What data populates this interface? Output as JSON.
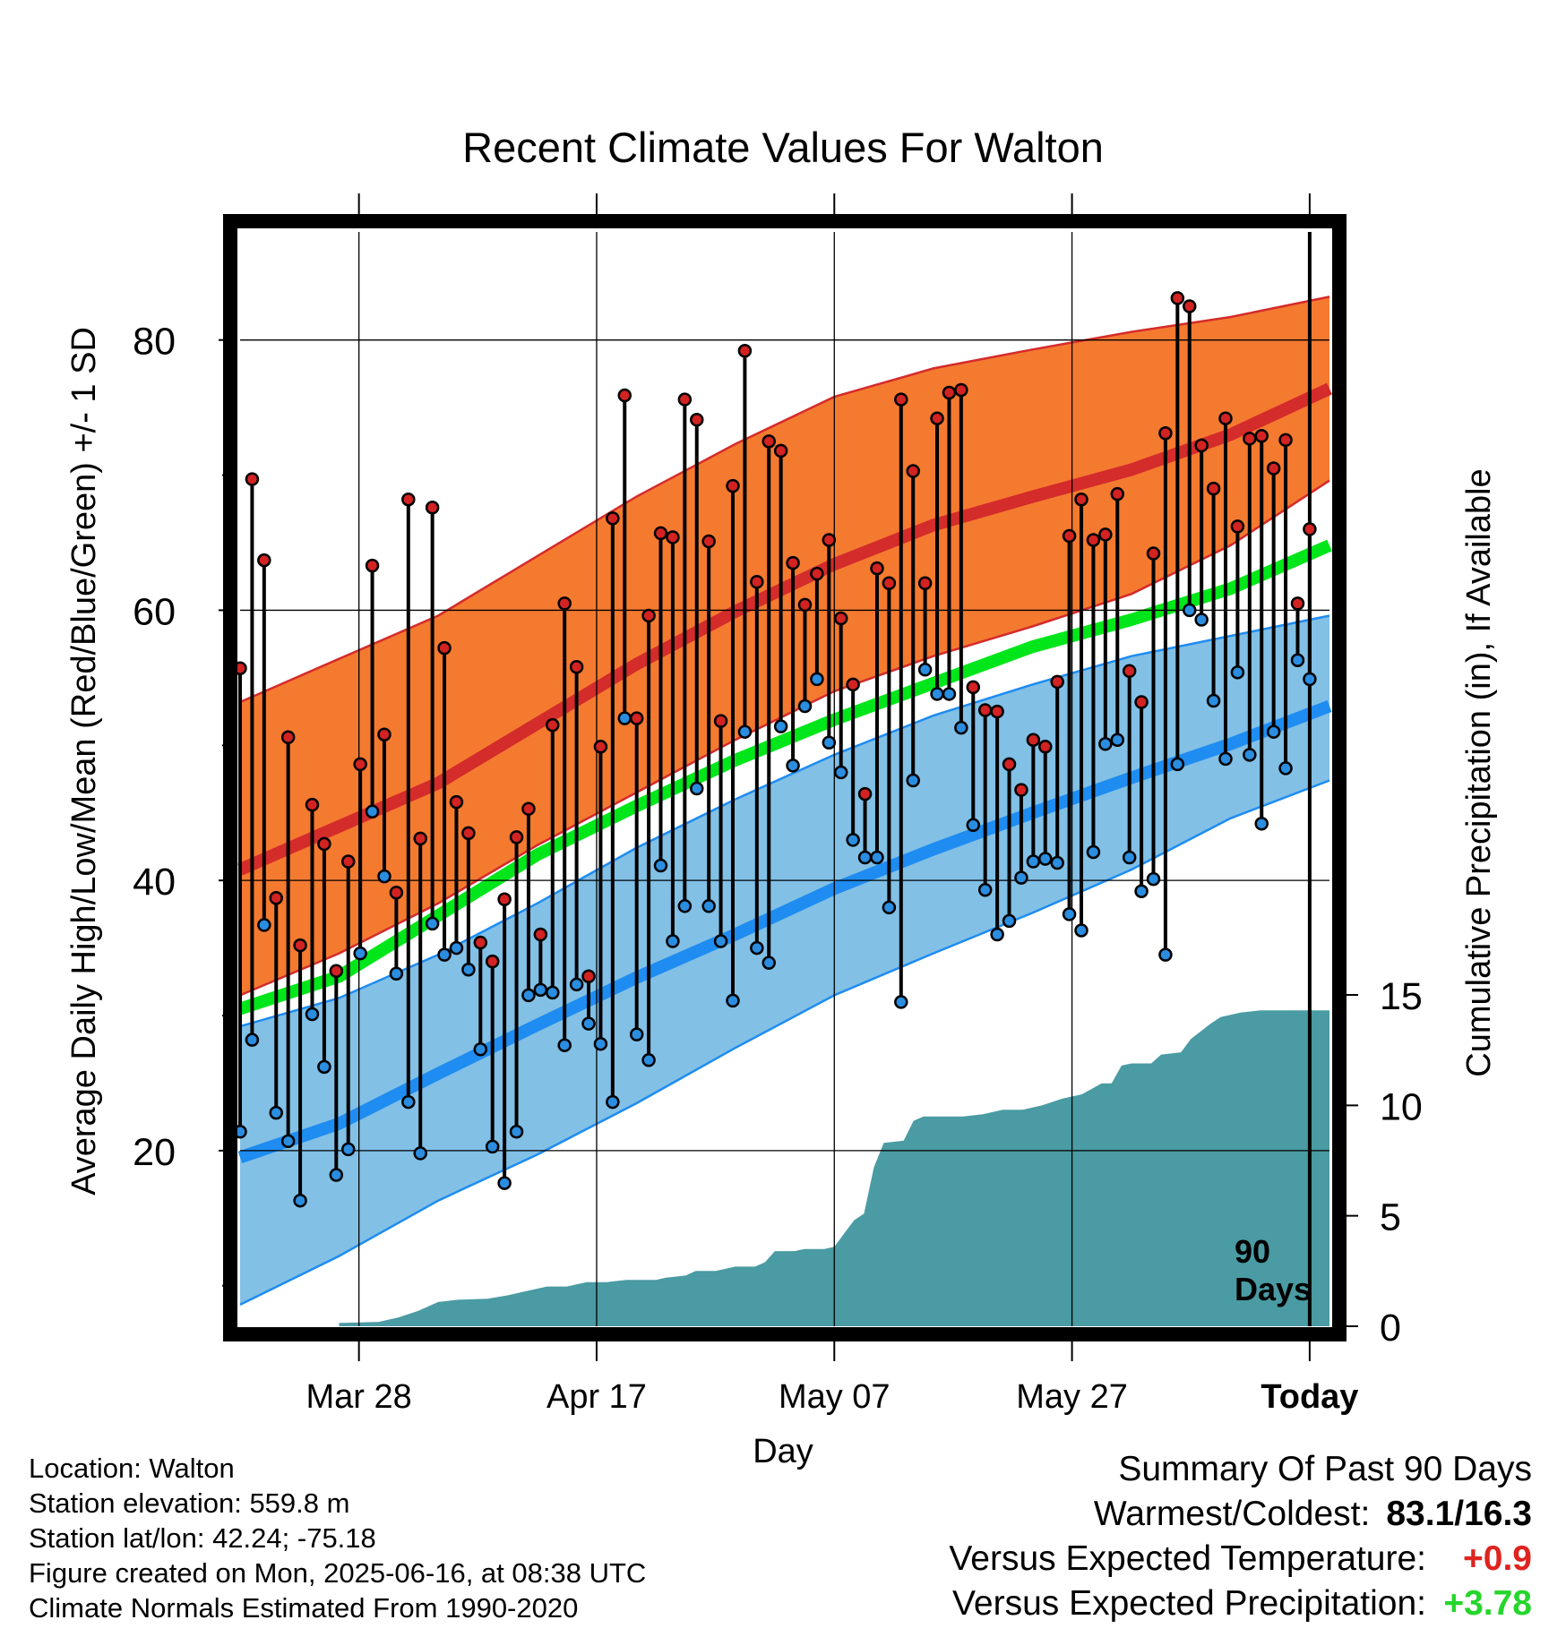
{
  "chart_data": {
    "type": "line",
    "title": "Recent Climate Values For Walton",
    "xlabel": "Day",
    "ylabel": "Average Daily High/Low/Mean (Red/Blue/Green) +/- 1 SD",
    "y2label": "Cumulative Precipitation (in), If Available",
    "ylim": [
      7,
      88
    ],
    "y2lim": [
      0,
      15
    ],
    "y_ticks": [
      "20",
      "40",
      "60",
      "80"
    ],
    "y2_ticks": [
      "0",
      "5",
      "10",
      "15"
    ],
    "x_ticks": [
      "Mar 28",
      "Apr 17",
      "May 07",
      "May 27",
      "Today"
    ],
    "today_marker_label": "90 Days",
    "grid": true,
    "daily_high": [
      55.7,
      69.7,
      63.7,
      38.7,
      50.6,
      35.2,
      45.6,
      42.7,
      33.3,
      41.4,
      48.6,
      63.3,
      50.8,
      39.1,
      68.2,
      43.1,
      67.6,
      57.2,
      45.8,
      43.5,
      35.4,
      34.0,
      38.6,
      43.2,
      45.3,
      36.0,
      51.5,
      60.5,
      55.8,
      32.9,
      49.9,
      66.8,
      75.9,
      52.0,
      59.6,
      65.7,
      65.4,
      75.6,
      74.1,
      65.1,
      51.8,
      69.2,
      79.2,
      62.1,
      72.5,
      71.8,
      63.5,
      60.4,
      62.7,
      65.2,
      59.4,
      54.5,
      46.4,
      63.1,
      62.0,
      75.6,
      70.3,
      62.0,
      74.2,
      76.1,
      76.3,
      54.3,
      52.6,
      52.5,
      48.6,
      46.7,
      50.4,
      49.9,
      54.7,
      65.5,
      68.2,
      65.2,
      65.6,
      68.6,
      55.5,
      53.2,
      64.2,
      73.1,
      83.1,
      82.5,
      72.2,
      69.0,
      74.2,
      66.2,
      72.7,
      72.9,
      70.5,
      72.6,
      60.5,
      66.0
    ],
    "daily_low": [
      21.4,
      28.2,
      36.7,
      22.8,
      20.7,
      16.3,
      30.1,
      26.2,
      18.2,
      20.1,
      34.6,
      45.1,
      40.3,
      33.1,
      23.6,
      19.8,
      36.8,
      34.5,
      35.0,
      33.4,
      27.5,
      20.3,
      17.6,
      21.4,
      31.5,
      31.9,
      31.7,
      27.8,
      32.3,
      29.4,
      27.9,
      23.6,
      52.0,
      28.6,
      26.7,
      41.1,
      35.5,
      38.1,
      46.8,
      38.1,
      35.5,
      31.1,
      51.0,
      35.0,
      33.9,
      51.4,
      48.5,
      52.9,
      54.9,
      50.2,
      48.0,
      43.0,
      41.7,
      41.7,
      38.0,
      31.0,
      47.4,
      55.6,
      53.8,
      53.8,
      51.3,
      44.1,
      39.3,
      36.0,
      37.0,
      40.2,
      41.4,
      41.6,
      41.3,
      37.5,
      36.3,
      42.1,
      50.1,
      50.4,
      41.7,
      39.2,
      40.1,
      34.5,
      48.6,
      60.0,
      59.3,
      53.3,
      49.0,
      55.4,
      49.3,
      44.2,
      51.0,
      48.3,
      56.3,
      54.9
    ],
    "normal_high": [
      [
        0,
        40.8
      ],
      [
        10,
        44.0
      ],
      [
        20,
        47.2
      ],
      [
        30,
        51.6
      ],
      [
        40,
        56.0
      ],
      [
        50,
        59.9
      ],
      [
        60,
        63.4
      ],
      [
        70,
        66.3
      ],
      [
        80,
        68.4
      ],
      [
        90,
        70.4
      ],
      [
        100,
        73.0
      ],
      [
        110,
        76.4
      ]
    ],
    "normal_high_plus_sd": [
      [
        0,
        53.2
      ],
      [
        10,
        56.4
      ],
      [
        20,
        59.6
      ],
      [
        30,
        64.0
      ],
      [
        40,
        68.4
      ],
      [
        50,
        72.3
      ],
      [
        60,
        75.8
      ],
      [
        70,
        77.9
      ],
      [
        80,
        79.3
      ],
      [
        90,
        80.6
      ],
      [
        100,
        81.7
      ],
      [
        110,
        83.2
      ]
    ],
    "normal_high_minus_sd": [
      [
        0,
        31.5
      ],
      [
        10,
        34.6
      ],
      [
        20,
        38.3
      ],
      [
        30,
        42.6
      ],
      [
        40,
        46.5
      ],
      [
        50,
        50.4
      ],
      [
        60,
        54.0
      ],
      [
        70,
        56.6
      ],
      [
        80,
        58.8
      ],
      [
        90,
        61.2
      ],
      [
        100,
        64.8
      ],
      [
        110,
        69.6
      ]
    ],
    "normal_mean": [
      [
        0,
        30.5
      ],
      [
        10,
        32.9
      ],
      [
        20,
        37.4
      ],
      [
        30,
        41.9
      ],
      [
        40,
        45.5
      ],
      [
        50,
        48.9
      ],
      [
        60,
        51.9
      ],
      [
        70,
        54.6
      ],
      [
        80,
        57.3
      ],
      [
        90,
        59.3
      ],
      [
        100,
        61.6
      ],
      [
        110,
        64.8
      ]
    ],
    "normal_low": [
      [
        0,
        19.5
      ],
      [
        10,
        22.0
      ],
      [
        20,
        25.7
      ],
      [
        30,
        29.3
      ],
      [
        40,
        32.8
      ],
      [
        50,
        36.0
      ],
      [
        60,
        39.4
      ],
      [
        70,
        42.3
      ],
      [
        80,
        45.0
      ],
      [
        90,
        47.6
      ],
      [
        100,
        50.1
      ],
      [
        110,
        52.9
      ]
    ],
    "normal_low_plus_sd": [
      [
        0,
        29.2
      ],
      [
        10,
        31.3
      ],
      [
        20,
        34.5
      ],
      [
        30,
        38.3
      ],
      [
        40,
        42.4
      ],
      [
        50,
        46.0
      ],
      [
        60,
        49.3
      ],
      [
        70,
        52.2
      ],
      [
        80,
        54.5
      ],
      [
        90,
        56.6
      ],
      [
        100,
        58.1
      ],
      [
        110,
        59.6
      ]
    ],
    "normal_low_minus_sd": [
      [
        0,
        8.6
      ],
      [
        10,
        12.2
      ],
      [
        20,
        16.3
      ],
      [
        30,
        19.7
      ],
      [
        40,
        23.5
      ],
      [
        50,
        27.6
      ],
      [
        60,
        31.5
      ],
      [
        70,
        34.6
      ],
      [
        80,
        37.6
      ],
      [
        90,
        40.8
      ],
      [
        100,
        44.6
      ],
      [
        110,
        47.4
      ]
    ],
    "cumulative_precip": [
      [
        0,
        0
      ],
      [
        10,
        0
      ],
      [
        10,
        0.15
      ],
      [
        14,
        0.2
      ],
      [
        16,
        0.4
      ],
      [
        18,
        0.7
      ],
      [
        20,
        1.1
      ],
      [
        22,
        1.2
      ],
      [
        25,
        1.25
      ],
      [
        27,
        1.4
      ],
      [
        29,
        1.6
      ],
      [
        31,
        1.8
      ],
      [
        33,
        1.8
      ],
      [
        35,
        2.0
      ],
      [
        37,
        2.0
      ],
      [
        39,
        2.1
      ],
      [
        42,
        2.1
      ],
      [
        43,
        2.2
      ],
      [
        45,
        2.3
      ],
      [
        46,
        2.5
      ],
      [
        48,
        2.5
      ],
      [
        49,
        2.6
      ],
      [
        50,
        2.7
      ],
      [
        52,
        2.7
      ],
      [
        53,
        2.9
      ],
      [
        54,
        3.4
      ],
      [
        56,
        3.4
      ],
      [
        57,
        3.5
      ],
      [
        59,
        3.5
      ],
      [
        60,
        3.6
      ],
      [
        61,
        4.2
      ],
      [
        62,
        4.8
      ],
      [
        63,
        5.1
      ],
      [
        64,
        7.2
      ],
      [
        65,
        8.3
      ],
      [
        67,
        8.4
      ],
      [
        68,
        9.3
      ],
      [
        69,
        9.5
      ],
      [
        72,
        9.5
      ],
      [
        73,
        9.5
      ],
      [
        75,
        9.6
      ],
      [
        77,
        9.8
      ],
      [
        79,
        9.8
      ],
      [
        81,
        10.0
      ],
      [
        83,
        10.3
      ],
      [
        85,
        10.5
      ],
      [
        87,
        11.0
      ],
      [
        88,
        11.0
      ],
      [
        89,
        11.8
      ],
      [
        90,
        11.9
      ],
      [
        92,
        11.9
      ],
      [
        93,
        12.3
      ],
      [
        95,
        12.4
      ],
      [
        96,
        13.0
      ],
      [
        98,
        13.7
      ],
      [
        99,
        14.0
      ],
      [
        101,
        14.2
      ],
      [
        103,
        14.3
      ],
      [
        108,
        14.3
      ],
      [
        110,
        14.3
      ]
    ]
  },
  "summary": {
    "title": "Summary Of Past 90 Days",
    "warmest_coldest_label": "Warmest/Coldest:",
    "warmest_coldest_value": "83.1/16.3",
    "temp_label": "Versus Expected Temperature:",
    "temp_value": "+0.9",
    "precip_label": "Versus Expected Precipitation:",
    "precip_value": "+3.78"
  },
  "info": {
    "location": "Location: Walton",
    "elevation": "Station elevation: 559.8 m",
    "latlon": "Station lat/lon: 42.24; -75.18",
    "created": "Figure created on Mon, 2025-06-16, at 08:38 UTC",
    "normals": "Climate Normals Estimated From 1990-2020"
  },
  "colors": {
    "high_band": "#f47a30",
    "high_mean_line": "#d42b2b",
    "low_band": "#82c0e6",
    "low_mean_line": "#1e8cf0",
    "mean_line": "#00e61a",
    "precip_fill": "#4a9ba3",
    "high_marker": "#d32222",
    "low_marker": "#2a8de0"
  }
}
